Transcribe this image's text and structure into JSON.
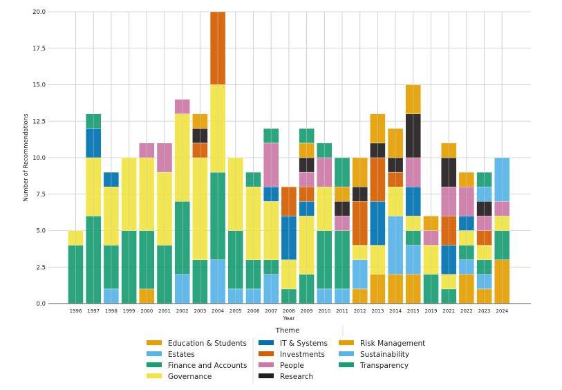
{
  "chart_data": {
    "type": "bar",
    "stacked": true,
    "xlabel": "Year",
    "ylabel": "Number of Recommendations",
    "ylim": [
      0,
      20
    ],
    "yticks": [
      "0.0",
      "2.5",
      "5.0",
      "7.5",
      "10.0",
      "12.5",
      "15.0",
      "17.5",
      "20.0"
    ],
    "grid": true,
    "legend_title": "Theme",
    "legend_placement": "bottom",
    "categories": [
      "1996",
      "1997",
      "1998",
      "1999",
      "2000",
      "2001",
      "2002",
      "2003",
      "2004",
      "2005",
      "2006",
      "2007",
      "2008",
      "2009",
      "2010",
      "2011",
      "2012",
      "2013",
      "2014",
      "2015",
      "2019",
      "2021",
      "2022",
      "2023",
      "2024"
    ],
    "series": [
      {
        "name": "Education & Students",
        "color": "#E69F00",
        "values": [
          0,
          0,
          0,
          0,
          1,
          0,
          0,
          0,
          0,
          0,
          0,
          0,
          0,
          0,
          0,
          0,
          1,
          2,
          2,
          2,
          0,
          0,
          2,
          1,
          3
        ]
      },
      {
        "name": "Estates",
        "color": "#56B4E9",
        "values": [
          0,
          0,
          1,
          0,
          0,
          0,
          2,
          0,
          3,
          1,
          1,
          2,
          0,
          0,
          1,
          1,
          2,
          0,
          4,
          2,
          0,
          0,
          1,
          1,
          0
        ]
      },
      {
        "name": "Finance and Accounts",
        "color": "#1A9E74",
        "values": [
          4,
          6,
          3,
          5,
          4,
          4,
          5,
          3,
          6,
          4,
          2,
          1,
          1,
          2,
          4,
          4,
          0,
          0,
          0,
          1,
          2,
          1,
          1,
          1,
          2
        ]
      },
      {
        "name": "Governance",
        "color": "#F0E442",
        "values": [
          1,
          4,
          4,
          5,
          5,
          5,
          6,
          7,
          6,
          5,
          5,
          4,
          2,
          4,
          3,
          0,
          1,
          2,
          2,
          1,
          2,
          1,
          1,
          1,
          1
        ]
      },
      {
        "name": "IT & Systems",
        "color": "#0072B2",
        "values": [
          0,
          2,
          1,
          0,
          0,
          0,
          0,
          0,
          0,
          0,
          0,
          1,
          3,
          1,
          0,
          0,
          0,
          3,
          0,
          2,
          0,
          2,
          1,
          0,
          0
        ]
      },
      {
        "name": "Investments",
        "color": "#D55E00",
        "values": [
          0,
          0,
          0,
          0,
          0,
          0,
          0,
          1,
          5,
          0,
          0,
          0,
          2,
          1,
          0,
          0,
          3,
          3,
          1,
          0,
          0,
          2,
          0,
          1,
          0
        ]
      },
      {
        "name": "People",
        "color": "#CC79A7",
        "values": [
          0,
          0,
          0,
          0,
          1,
          2,
          1,
          0,
          0,
          0,
          0,
          3,
          0,
          1,
          2,
          1,
          0,
          0,
          0,
          2,
          1,
          2,
          2,
          1,
          1
        ]
      },
      {
        "name": "Research",
        "color": "#231F20",
        "values": [
          0,
          0,
          0,
          0,
          0,
          0,
          0,
          1,
          0,
          0,
          0,
          0,
          0,
          1,
          0,
          1,
          1,
          1,
          1,
          3,
          0,
          2,
          0,
          1,
          0
        ]
      },
      {
        "name": "Risk Management",
        "color": "#E69F00",
        "values": [
          0,
          0,
          0,
          0,
          0,
          0,
          0,
          1,
          0,
          0,
          0,
          0,
          0,
          1,
          0,
          1,
          2,
          2,
          2,
          2,
          1,
          1,
          1,
          0,
          0
        ]
      },
      {
        "name": "Sustainability",
        "color": "#56B4E9",
        "values": [
          0,
          0,
          0,
          0,
          0,
          0,
          0,
          0,
          0,
          0,
          0,
          0,
          0,
          0,
          0,
          0,
          0,
          0,
          0,
          0,
          0,
          0,
          0,
          1,
          3
        ]
      },
      {
        "name": "Transparency",
        "color": "#1A9E74",
        "values": [
          0,
          1,
          0,
          0,
          0,
          0,
          0,
          0,
          0,
          0,
          1,
          1,
          0,
          1,
          1,
          2,
          0,
          0,
          0,
          0,
          0,
          0,
          0,
          1,
          0
        ]
      }
    ]
  }
}
